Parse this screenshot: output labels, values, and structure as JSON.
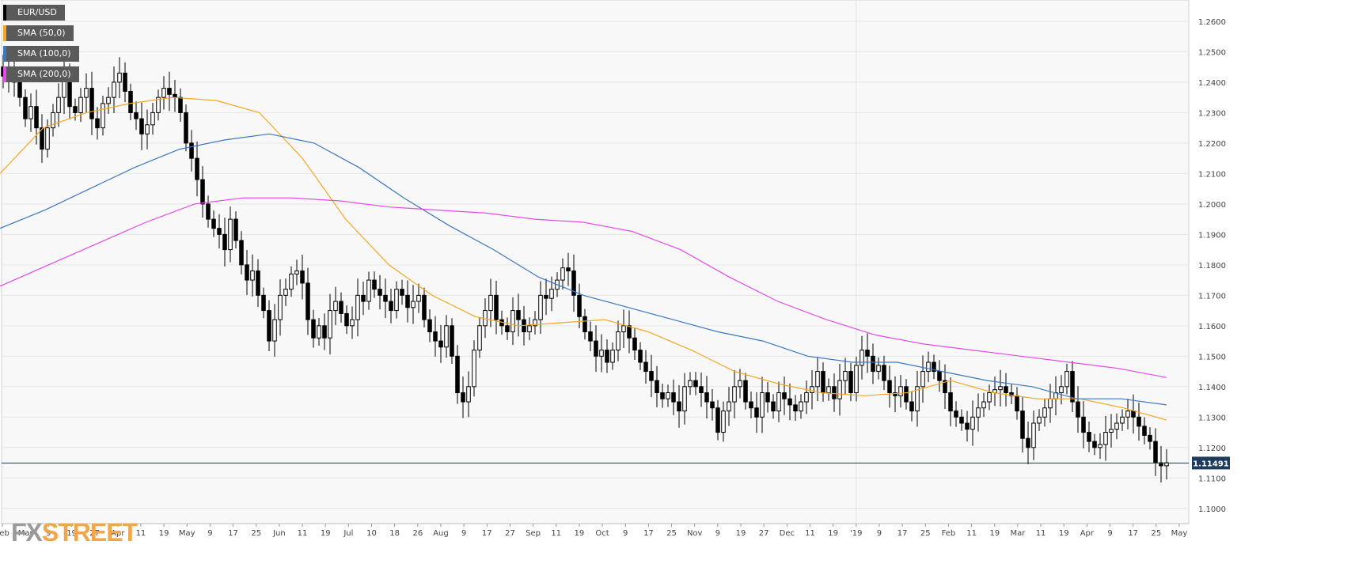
{
  "chart_data": {
    "type": "candlestick",
    "symbol": "EUR/USD",
    "indicators": [
      {
        "name": "SMA (50,0)",
        "color": "#f5a623"
      },
      {
        "name": "SMA (100,0)",
        "color": "#3a78c2"
      },
      {
        "name": "SMA (200,0)",
        "color": "#e64ae6"
      }
    ],
    "ylim": [
      1.095,
      1.267
    ],
    "yticks": [
      "1.2600",
      "1.2500",
      "1.2400",
      "1.2300",
      "1.2200",
      "1.2100",
      "1.2000",
      "1.1900",
      "1.1800",
      "1.1700",
      "1.1600",
      "1.1500",
      "1.1400",
      "1.1300",
      "1.1200",
      "1.1100",
      "1.1000"
    ],
    "xticks": [
      "Feb",
      "Mar",
      "9",
      "19",
      "27",
      "Apr",
      "11",
      "19",
      "May",
      "9",
      "17",
      "25",
      "Jun",
      "11",
      "19",
      "Jul",
      "10",
      "18",
      "26",
      "Aug",
      "9",
      "17",
      "27",
      "Sep",
      "11",
      "19",
      "Oct",
      "9",
      "17",
      "25",
      "Nov",
      "9",
      "19",
      "27",
      "Dec",
      "11",
      "19",
      "'19",
      "9",
      "17",
      "25",
      "Feb",
      "11",
      "19",
      "Mar",
      "11",
      "19",
      "Apr",
      "9",
      "17",
      "25",
      "May"
    ],
    "current_price": "1.11491",
    "current_value": 1.1149,
    "series": [
      {
        "name": "EUR/USD",
        "close": [
          1.242,
          1.245,
          1.24,
          1.235,
          1.228,
          1.232,
          1.225,
          1.218,
          1.225,
          1.23,
          1.235,
          1.242,
          1.232,
          1.23,
          1.235,
          1.238,
          1.228,
          1.225,
          1.233,
          1.235,
          1.24,
          1.243,
          1.237,
          1.23,
          1.228,
          1.223,
          1.226,
          1.23,
          1.235,
          1.238,
          1.236,
          1.235,
          1.23,
          1.22,
          1.215,
          1.208,
          1.2,
          1.195,
          1.192,
          1.19,
          1.185,
          1.195,
          1.188,
          1.18,
          1.175,
          1.178,
          1.17,
          1.165,
          1.155,
          1.162,
          1.17,
          1.172,
          1.177,
          1.178,
          1.174,
          1.162,
          1.156,
          1.16,
          1.156,
          1.165,
          1.168,
          1.164,
          1.16,
          1.162,
          1.17,
          1.168,
          1.175,
          1.172,
          1.17,
          1.168,
          1.165,
          1.172,
          1.17,
          1.166,
          1.168,
          1.17,
          1.162,
          1.158,
          1.155,
          1.153,
          1.16,
          1.15,
          1.138,
          1.135,
          1.14,
          1.152,
          1.16,
          1.165,
          1.17,
          1.162,
          1.16,
          1.158,
          1.165,
          1.162,
          1.158,
          1.16,
          1.162,
          1.17,
          1.169,
          1.172,
          1.175,
          1.179,
          1.178,
          1.17,
          1.163,
          1.158,
          1.155,
          1.15,
          1.152,
          1.148,
          1.152,
          1.158,
          1.16,
          1.156,
          1.152,
          1.148,
          1.145,
          1.142,
          1.138,
          1.136,
          1.138,
          1.135,
          1.132,
          1.14,
          1.142,
          1.14,
          1.138,
          1.135,
          1.133,
          1.125,
          1.132,
          1.135,
          1.14,
          1.142,
          1.135,
          1.133,
          1.13,
          1.138,
          1.135,
          1.132,
          1.138,
          1.136,
          1.134,
          1.132,
          1.135,
          1.138,
          1.14,
          1.145,
          1.138,
          1.14,
          1.136,
          1.142,
          1.145,
          1.138,
          1.147,
          1.152,
          1.15,
          1.145,
          1.147,
          1.142,
          1.138,
          1.137,
          1.14,
          1.135,
          1.132,
          1.14,
          1.145,
          1.148,
          1.145,
          1.142,
          1.138,
          1.132,
          1.13,
          1.128,
          1.126,
          1.13,
          1.133,
          1.135,
          1.138,
          1.139,
          1.14,
          1.138,
          1.137,
          1.132,
          1.123,
          1.12,
          1.128,
          1.13,
          1.133,
          1.136,
          1.138,
          1.14,
          1.145,
          1.135,
          1.13,
          1.125,
          1.122,
          1.12,
          1.121,
          1.125,
          1.126,
          1.128,
          1.13,
          1.132,
          1.13,
          1.127,
          1.124,
          1.122,
          1.115,
          1.114,
          1.115
        ]
      },
      {
        "name": "SMA (50,0)",
        "values": [
          1.21,
          1.225,
          1.23,
          1.233,
          1.235,
          1.234,
          1.23,
          1.215,
          1.195,
          1.18,
          1.17,
          1.163,
          1.16,
          1.161,
          1.162,
          1.158,
          1.152,
          1.145,
          1.141,
          1.138,
          1.137,
          1.138,
          1.142,
          1.138,
          1.136,
          1.136,
          1.133,
          1.129
        ]
      },
      {
        "name": "SMA (100,0)",
        "values": [
          1.192,
          1.198,
          1.205,
          1.212,
          1.218,
          1.221,
          1.223,
          1.22,
          1.212,
          1.202,
          1.193,
          1.185,
          1.176,
          1.17,
          1.166,
          1.162,
          1.158,
          1.155,
          1.15,
          1.148,
          1.148,
          1.145,
          1.142,
          1.14,
          1.136,
          1.136,
          1.134
        ]
      },
      {
        "name": "SMA (200,0)",
        "values": [
          1.173,
          1.18,
          1.187,
          1.194,
          1.2,
          1.202,
          1.202,
          1.201,
          1.199,
          1.198,
          1.197,
          1.195,
          1.194,
          1.191,
          1.185,
          1.176,
          1.168,
          1.162,
          1.157,
          1.154,
          1.152,
          1.15,
          1.148,
          1.146,
          1.143
        ]
      }
    ]
  }
}
